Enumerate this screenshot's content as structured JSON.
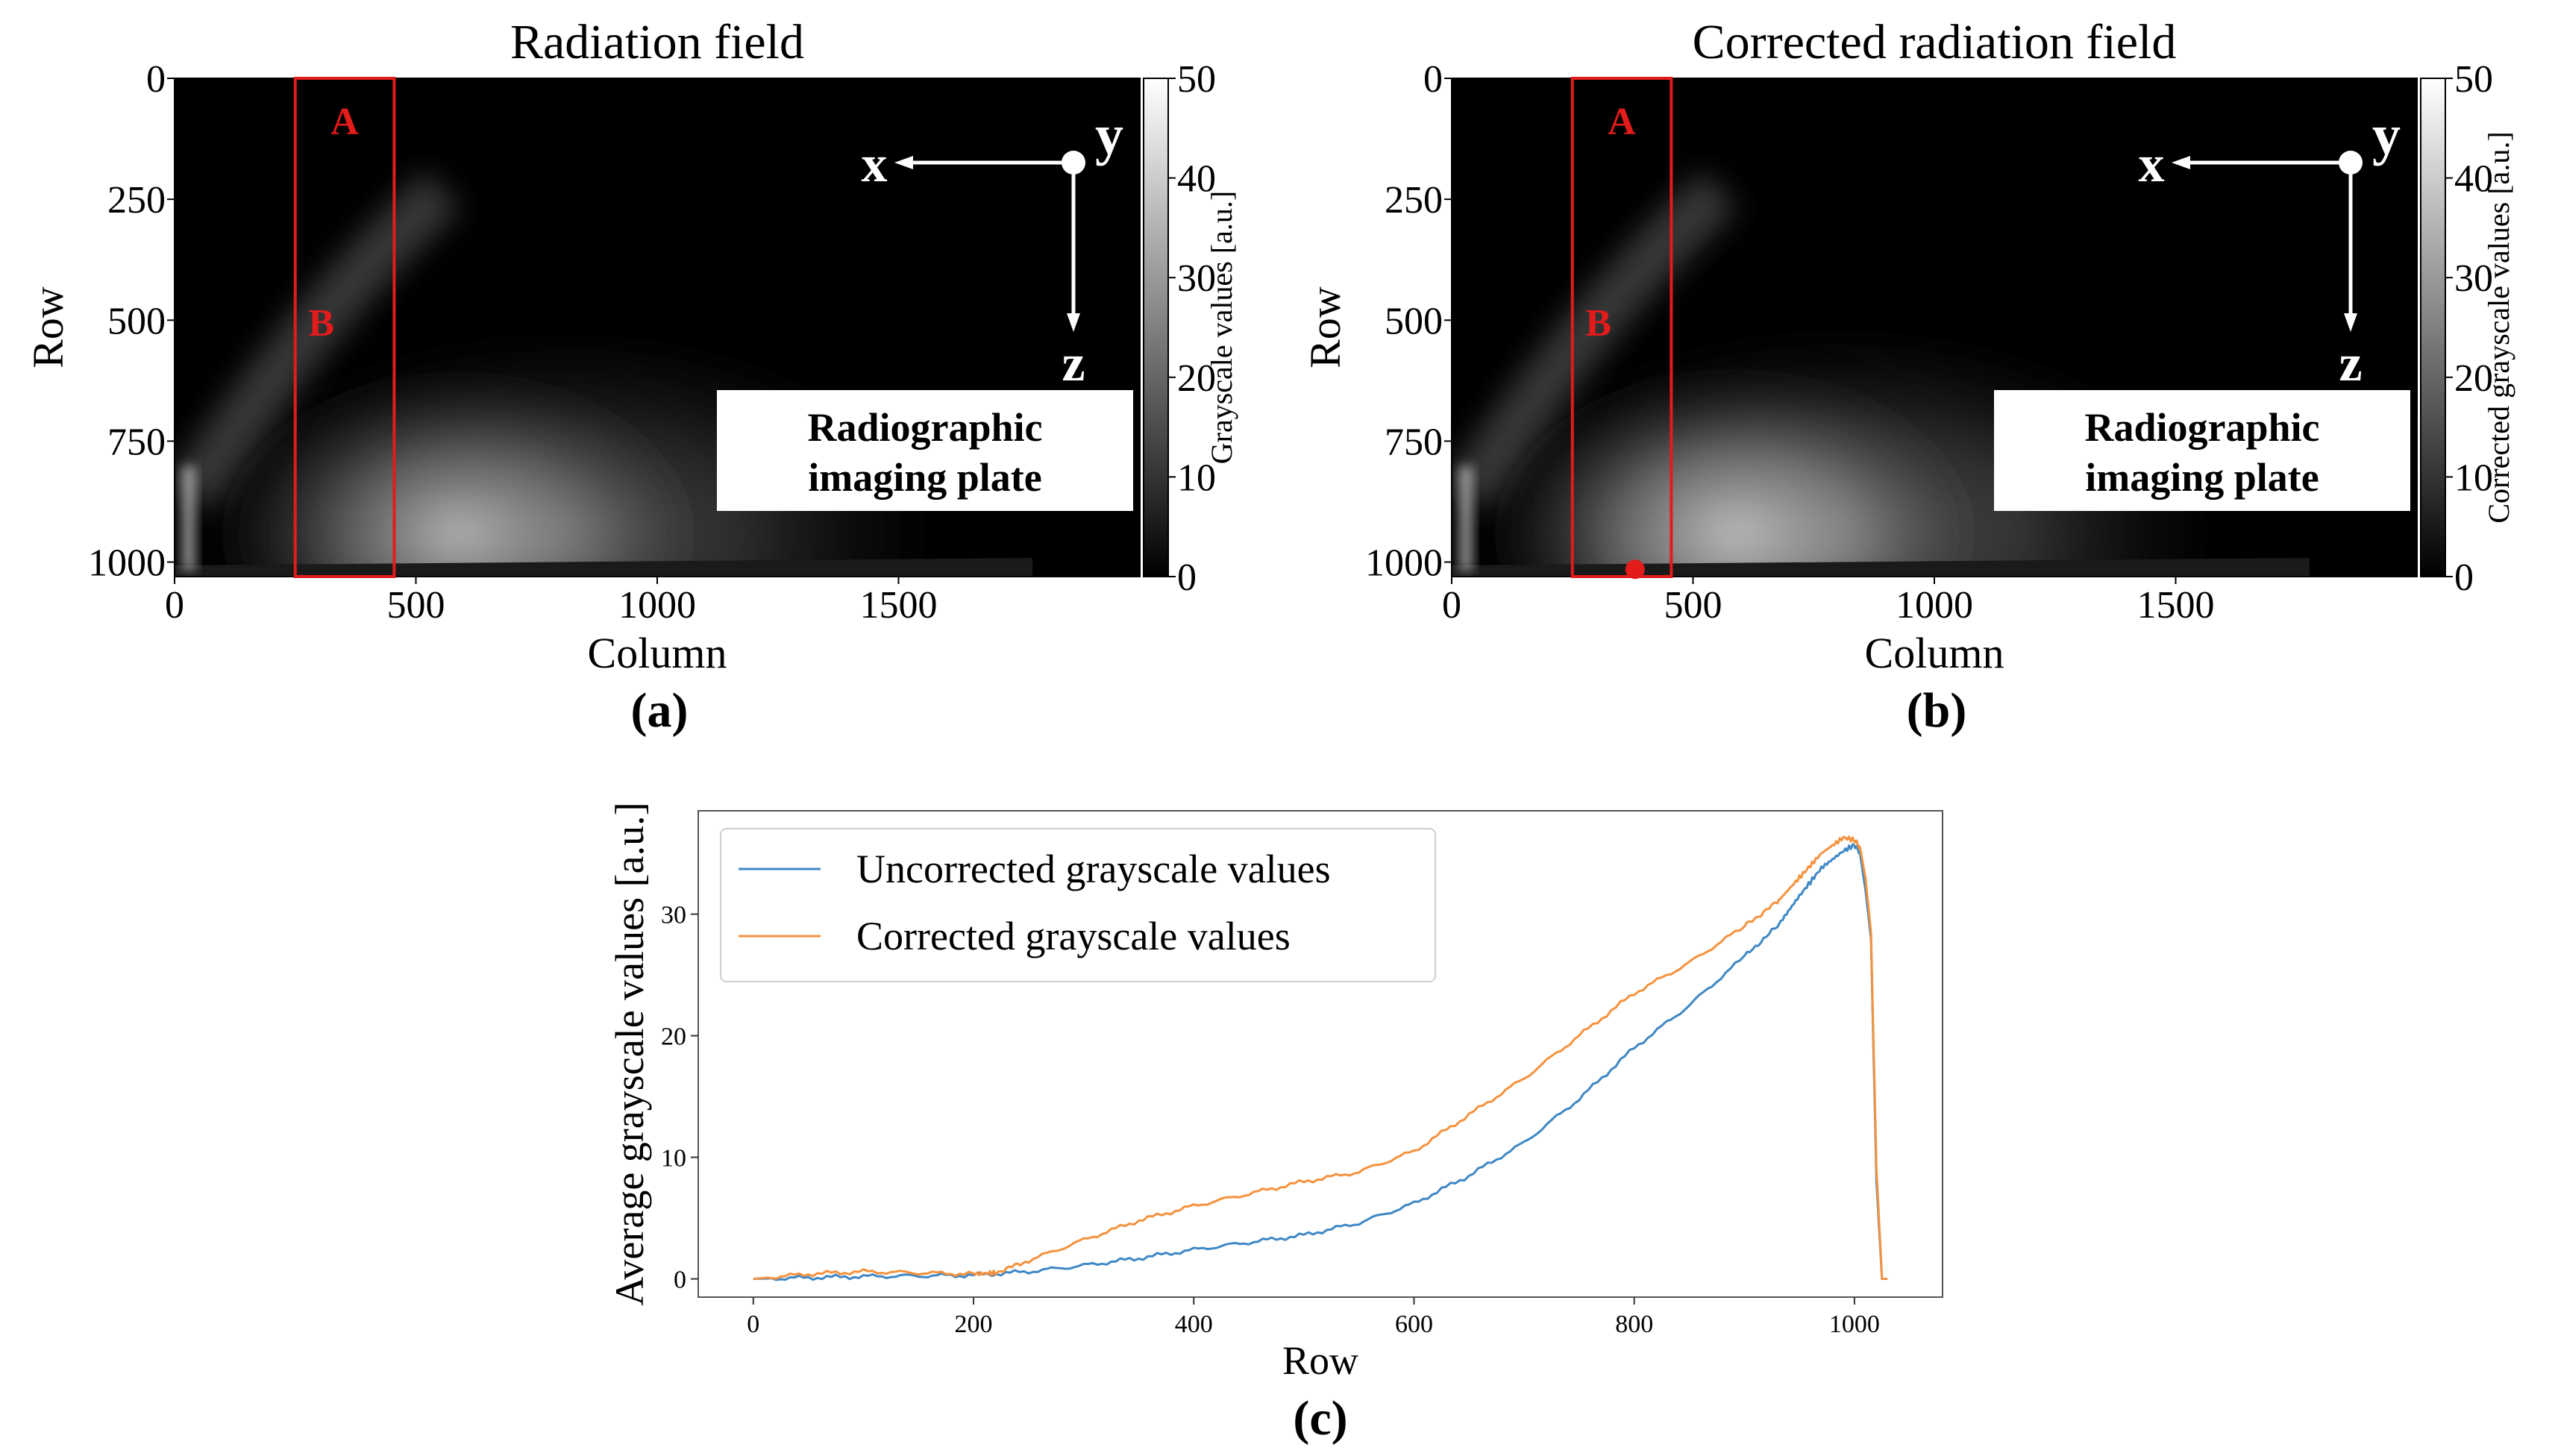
{
  "chart_data": [
    {
      "type": "heatmap",
      "title": "Radiation field",
      "xlabel": "Column",
      "ylabel": "Row",
      "x_ticks": [
        0,
        500,
        1000,
        1500
      ],
      "y_ticks": [
        0,
        250,
        500,
        750,
        1000
      ],
      "x_range": [
        0,
        2000
      ],
      "y_range": [
        0,
        1030
      ],
      "colorbar": {
        "label": "Grayscale values [a.u.]",
        "ticks": [
          0,
          10,
          20,
          30,
          40,
          50
        ],
        "range": [
          0,
          50
        ]
      },
      "region": {
        "col_range": [
          250,
          455
        ],
        "row_range": [
          0,
          1030
        ],
        "labels": [
          "A",
          "B"
        ]
      },
      "axes_labels": [
        "x",
        "y",
        "z"
      ],
      "plate_label": [
        "Radiographic",
        "imaging plate"
      ],
      "panel_label": "(a)"
    },
    {
      "type": "heatmap",
      "title": "Corrected radiation field",
      "xlabel": "Column",
      "ylabel": "Row",
      "x_ticks": [
        0,
        500,
        1000,
        1500
      ],
      "y_ticks": [
        0,
        250,
        500,
        750,
        1000
      ],
      "x_range": [
        0,
        2000
      ],
      "y_range": [
        0,
        1030
      ],
      "colorbar": {
        "label": "Corrected grayscale values [a.u.]",
        "ticks": [
          0,
          10,
          20,
          30,
          40,
          50
        ],
        "range": [
          0,
          50
        ]
      },
      "region": {
        "col_range": [
          250,
          455
        ],
        "row_range": [
          0,
          1030
        ],
        "labels": [
          "A",
          "B"
        ]
      },
      "marker_point": {
        "column": 380,
        "row": 1015
      },
      "axes_labels": [
        "x",
        "y",
        "z"
      ],
      "plate_label": [
        "Radiographic",
        "imaging plate"
      ],
      "panel_label": "(b)"
    },
    {
      "type": "line",
      "xlabel": "Row",
      "ylabel": "Average grayscale values [a.u.]",
      "xlim": [
        -50,
        1080
      ],
      "ylim": [
        -1.5,
        38.5
      ],
      "x_ticks": [
        0,
        200,
        400,
        600,
        800,
        1000
      ],
      "y_ticks": [
        0,
        10,
        20,
        30
      ],
      "legend_position": "top-left",
      "panel_label": "(c)",
      "series": [
        {
          "name": "Uncorrected grayscale values",
          "color": "#3f88c5",
          "x": [
            0,
            50,
            100,
            150,
            200,
            250,
            300,
            350,
            400,
            450,
            500,
            550,
            600,
            650,
            700,
            750,
            800,
            850,
            900,
            930,
            950,
            970,
            990,
            1000,
            1005,
            1010,
            1015,
            1020,
            1025,
            1030
          ],
          "y": [
            0,
            0.1,
            0.2,
            0.25,
            0.3,
            0.6,
            1.1,
            1.7,
            2.4,
            3.0,
            3.6,
            4.6,
            6.2,
            8.5,
            11.2,
            14.8,
            19.0,
            22.5,
            26.5,
            29.0,
            31.5,
            33.8,
            35.2,
            35.7,
            35.0,
            32.0,
            28.0,
            8.0,
            0,
            0
          ]
        },
        {
          "name": "Corrected grayscale values",
          "color": "#f5923e",
          "x": [
            0,
            50,
            100,
            150,
            200,
            220,
            250,
            300,
            350,
            400,
            450,
            500,
            550,
            600,
            650,
            700,
            750,
            800,
            850,
            900,
            930,
            950,
            970,
            990,
            1000,
            1005,
            1010,
            1015,
            1020,
            1025,
            1030
          ],
          "y": [
            0,
            0.4,
            0.6,
            0.5,
            0.4,
            0.5,
            1.5,
            3.2,
            4.8,
            6.0,
            7.0,
            8.0,
            8.8,
            10.5,
            13.5,
            16.5,
            20.0,
            23.5,
            26.0,
            29.0,
            31.0,
            33.0,
            35.0,
            36.3,
            36.1,
            35.5,
            33.0,
            28.5,
            9.0,
            0,
            0
          ]
        }
      ]
    }
  ]
}
